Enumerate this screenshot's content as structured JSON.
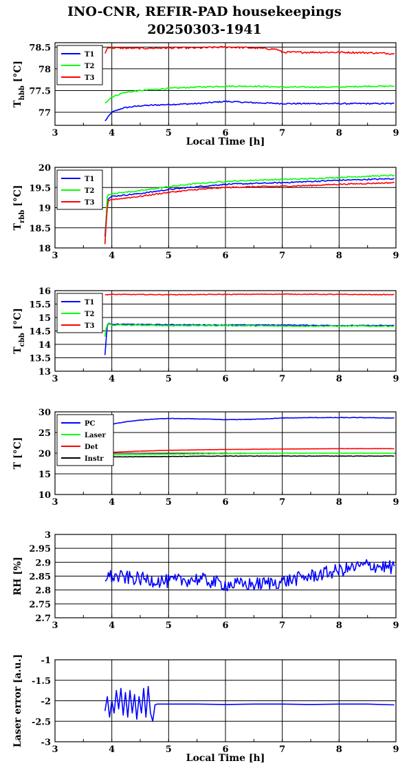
{
  "title": {
    "line1": "INO-CNR, REFIR-PAD housekeepings",
    "line2": "20250303-1941"
  },
  "chart_data": [
    {
      "type": "line",
      "id": "p1",
      "ylabel": "T",
      "ylabel_sub": "hbb",
      "ylabel_unit": " [°C]",
      "xlabel": "Local Time [h]",
      "xlim": [
        3,
        9
      ],
      "ylim": [
        76.7,
        78.6
      ],
      "xticks": [
        3,
        4,
        5,
        6,
        7,
        8,
        9
      ],
      "yticks": [
        77,
        77.5,
        78,
        78.5
      ],
      "ytick_labels": [
        "77",
        "77.5",
        "78",
        "78.5"
      ],
      "grid": true,
      "legend": "top-left",
      "series": [
        {
          "name": "T1",
          "color": "#0000ff",
          "noise": 0.015,
          "x": [
            3.88,
            4.0,
            4.2,
            4.5,
            5.0,
            5.5,
            6.0,
            6.5,
            7.0,
            7.5,
            8.0,
            8.5,
            8.97
          ],
          "y": [
            76.8,
            77.0,
            77.1,
            77.15,
            77.18,
            77.2,
            77.25,
            77.22,
            77.2,
            77.2,
            77.2,
            77.2,
            77.2
          ]
        },
        {
          "name": "T2",
          "color": "#00ff00",
          "noise": 0.015,
          "x": [
            3.88,
            4.0,
            4.2,
            4.5,
            5.0,
            5.5,
            6.0,
            6.5,
            7.0,
            7.5,
            8.0,
            8.5,
            8.97
          ],
          "y": [
            77.22,
            77.35,
            77.45,
            77.5,
            77.55,
            77.58,
            77.6,
            77.6,
            77.58,
            77.58,
            77.58,
            77.6,
            77.6
          ]
        },
        {
          "name": "T3",
          "color": "#ff0000",
          "noise": 0.02,
          "x": [
            3.88,
            3.93,
            4.0,
            4.5,
            5.0,
            5.5,
            6.0,
            6.5,
            6.9,
            7.0,
            7.5,
            8.0,
            8.5,
            8.97
          ],
          "y": [
            78.35,
            78.5,
            78.48,
            78.47,
            78.48,
            78.48,
            78.5,
            78.48,
            78.45,
            78.38,
            78.38,
            78.38,
            78.37,
            78.35
          ]
        }
      ]
    },
    {
      "type": "line",
      "id": "p2",
      "ylabel": "T",
      "ylabel_sub": "rbb",
      "ylabel_unit": " [°C]",
      "xlabel": "",
      "xlim": [
        3,
        9
      ],
      "ylim": [
        18,
        20
      ],
      "xticks": [
        3,
        4,
        5,
        6,
        7,
        8,
        9
      ],
      "yticks": [
        18,
        18.5,
        19,
        19.5,
        20
      ],
      "ytick_labels": [
        "18",
        "18.5",
        "19",
        "19.5",
        "20"
      ],
      "grid": true,
      "legend": "top-left",
      "series": [
        {
          "name": "T1",
          "color": "#0000ff",
          "noise": 0.015,
          "x": [
            3.88,
            3.92,
            4.0,
            4.5,
            5.0,
            5.5,
            6.0,
            6.5,
            7.0,
            7.5,
            8.0,
            8.5,
            8.97
          ],
          "y": [
            18.3,
            19.2,
            19.28,
            19.35,
            19.45,
            19.52,
            19.58,
            19.6,
            19.62,
            19.65,
            19.68,
            19.7,
            19.72
          ]
        },
        {
          "name": "T2",
          "color": "#00ff00",
          "noise": 0.015,
          "x": [
            3.88,
            3.92,
            4.0,
            4.5,
            5.0,
            5.5,
            6.0,
            6.5,
            7.0,
            7.5,
            8.0,
            8.5,
            8.97
          ],
          "y": [
            18.1,
            19.3,
            19.35,
            19.42,
            19.52,
            19.6,
            19.65,
            19.68,
            19.7,
            19.72,
            19.75,
            19.78,
            19.8
          ]
        },
        {
          "name": "T3",
          "color": "#ff0000",
          "noise": 0.015,
          "x": [
            3.88,
            3.9,
            3.93,
            4.0,
            4.5,
            5.0,
            5.5,
            6.0,
            6.5,
            7.0,
            7.5,
            8.0,
            8.5,
            8.97
          ],
          "y": [
            18.1,
            18.6,
            19.15,
            19.2,
            19.28,
            19.38,
            19.45,
            19.5,
            19.52,
            19.53,
            19.55,
            19.58,
            19.6,
            19.62
          ]
        }
      ]
    },
    {
      "type": "line",
      "id": "p3",
      "ylabel": "T",
      "ylabel_sub": "cbb",
      "ylabel_unit": " [°C]",
      "xlabel": "",
      "xlim": [
        3,
        9
      ],
      "ylim": [
        13,
        16
      ],
      "xticks": [
        3,
        4,
        5,
        6,
        7,
        8,
        9
      ],
      "yticks": [
        13,
        13.5,
        14,
        14.5,
        15,
        15.5,
        16
      ],
      "ytick_labels": [
        "13",
        "13.5",
        "14",
        "14.5",
        "15",
        "15.5",
        "16"
      ],
      "grid": true,
      "legend": "top-left",
      "series": [
        {
          "name": "T1",
          "color": "#0000ff",
          "noise": 0.015,
          "x": [
            3.88,
            3.9,
            3.92,
            3.95,
            4.0,
            5.0,
            6.0,
            7.0,
            8.0,
            8.97
          ],
          "y": [
            13.6,
            14.2,
            14.7,
            14.78,
            14.75,
            14.73,
            14.72,
            14.72,
            14.7,
            14.7
          ]
        },
        {
          "name": "T2",
          "color": "#00ff00",
          "noise": 0.02,
          "x": [
            3.88,
            3.9,
            3.93,
            4.0,
            5.0,
            6.0,
            7.0,
            8.0,
            8.97
          ],
          "y": [
            14.3,
            14.6,
            14.78,
            14.72,
            14.7,
            14.7,
            14.68,
            14.68,
            14.68
          ]
        },
        {
          "name": "T3",
          "color": "#ff0000",
          "noise": 0.012,
          "x": [
            3.88,
            4.0,
            5.0,
            6.0,
            7.0,
            8.0,
            8.97
          ],
          "y": [
            15.85,
            15.86,
            15.85,
            15.86,
            15.87,
            15.86,
            15.85
          ]
        }
      ]
    },
    {
      "type": "line",
      "id": "p4",
      "ylabel": "T [°C]",
      "ylabel_sub": "",
      "ylabel_unit": "",
      "xlabel": "",
      "xlim": [
        3,
        9
      ],
      "ylim": [
        10,
        30
      ],
      "xticks": [
        3,
        4,
        5,
        6,
        7,
        8,
        9
      ],
      "yticks": [
        10,
        15,
        20,
        25,
        30
      ],
      "ytick_labels": [
        "10",
        "15",
        "20",
        "25",
        "30"
      ],
      "grid": true,
      "legend": "top-left",
      "series": [
        {
          "name": "PC",
          "color": "#0000ff",
          "noise": 0.05,
          "x": [
            3.88,
            3.95,
            4.0,
            4.2,
            4.5,
            4.8,
            5.0,
            5.5,
            6.0,
            6.5,
            7.0,
            7.5,
            8.0,
            8.5,
            8.97
          ],
          "y": [
            25.5,
            26.8,
            27.0,
            27.5,
            28.0,
            28.3,
            28.4,
            28.3,
            28.1,
            28.2,
            28.5,
            28.6,
            28.6,
            28.6,
            28.5
          ]
        },
        {
          "name": "Laser",
          "color": "#00ff00",
          "noise": 0.05,
          "x": [
            3.88,
            4.0,
            5.0,
            6.0,
            7.0,
            8.0,
            8.97
          ],
          "y": [
            19.5,
            19.6,
            19.8,
            19.9,
            20.0,
            20.0,
            20.0
          ]
        },
        {
          "name": "Det",
          "color": "#ff0000",
          "noise": 0.02,
          "x": [
            3.88,
            4.0,
            4.5,
            5.0,
            6.0,
            7.0,
            8.0,
            8.97
          ],
          "y": [
            20.0,
            20.2,
            20.5,
            20.7,
            20.9,
            21.0,
            21.1,
            21.1
          ]
        },
        {
          "name": "Instr",
          "color": "#000000",
          "noise": 0.05,
          "x": [
            3.88,
            4.0,
            5.0,
            6.0,
            7.0,
            8.0,
            8.97
          ],
          "y": [
            19.0,
            19.1,
            19.2,
            19.3,
            19.3,
            19.3,
            19.3
          ]
        }
      ]
    },
    {
      "type": "line",
      "id": "p5",
      "ylabel": "RH [%]",
      "ylabel_sub": "",
      "ylabel_unit": "",
      "xlabel": "",
      "xlim": [
        3,
        9
      ],
      "ylim": [
        2.7,
        3
      ],
      "xticks": [
        3,
        4,
        5,
        6,
        7,
        8,
        9
      ],
      "yticks": [
        2.7,
        2.75,
        2.8,
        2.85,
        2.9,
        2.95,
        3
      ],
      "ytick_labels": [
        "2.7",
        "2.75",
        "2.8",
        "2.85",
        "2.9",
        "2.95",
        "3"
      ],
      "grid": true,
      "legend": "none",
      "series": [
        {
          "name": "",
          "color": "#0000ff",
          "noise": 0.025,
          "x": [
            3.88,
            4.5,
            5.0,
            5.5,
            6.0,
            6.5,
            7.0,
            7.5,
            8.0,
            8.5,
            8.97
          ],
          "y": [
            2.85,
            2.84,
            2.83,
            2.84,
            2.82,
            2.82,
            2.83,
            2.85,
            2.87,
            2.89,
            2.88
          ]
        }
      ]
    },
    {
      "type": "line",
      "id": "p6",
      "ylabel": "Laser error [a.u.]",
      "ylabel_sub": "",
      "ylabel_unit": "",
      "xlabel": "Local Time [h]",
      "xlim": [
        3,
        9
      ],
      "ylim": [
        -3,
        -1
      ],
      "xticks": [
        3,
        4,
        5,
        6,
        7,
        8,
        9
      ],
      "yticks": [
        -3,
        -2.5,
        -2,
        -1.5,
        -1
      ],
      "ytick_labels": [
        "-3",
        "-2.5",
        "-2",
        "-1.5",
        "-1"
      ],
      "grid": true,
      "legend": "none",
      "series": [
        {
          "name": "",
          "color": "#0000ff",
          "noise": 0.0,
          "x": [
            3.88,
            3.92,
            3.96,
            4.0,
            4.04,
            4.08,
            4.12,
            4.16,
            4.2,
            4.24,
            4.28,
            4.32,
            4.36,
            4.4,
            4.44,
            4.48,
            4.52,
            4.56,
            4.6,
            4.64,
            4.68,
            4.72,
            4.76,
            4.8,
            5.0,
            5.5,
            6.0,
            6.5,
            7.0,
            7.5,
            8.0,
            8.5,
            8.97
          ],
          "y": [
            -2.25,
            -1.9,
            -2.4,
            -2.0,
            -2.3,
            -1.75,
            -2.2,
            -1.7,
            -2.35,
            -1.8,
            -2.4,
            -1.75,
            -2.3,
            -1.85,
            -2.45,
            -1.9,
            -2.3,
            -1.7,
            -2.4,
            -1.65,
            -2.3,
            -2.5,
            -2.1,
            -2.08,
            -2.08,
            -2.08,
            -2.09,
            -2.08,
            -2.08,
            -2.09,
            -2.08,
            -2.08,
            -2.1
          ]
        }
      ]
    }
  ]
}
